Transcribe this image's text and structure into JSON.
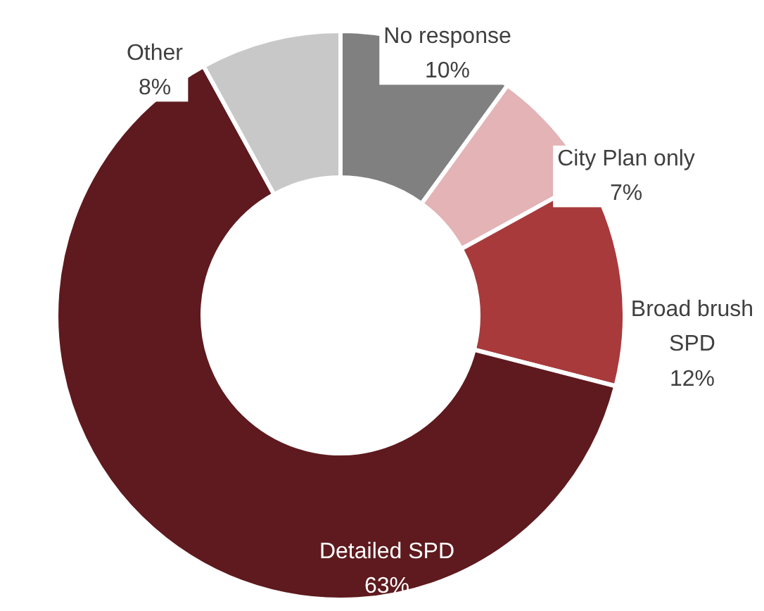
{
  "chart_data": {
    "type": "donut",
    "categories": [
      "No response",
      "City Plan only",
      "Broad brush SPD",
      "Detailed SPD",
      "Other"
    ],
    "values": [
      10,
      7,
      12,
      63,
      8
    ],
    "colors": [
      "#808080",
      "#e3b3b6",
      "#a83a3c",
      "#5e1a1e",
      "#c8c8c8"
    ],
    "value_labels": [
      "10%",
      "7%",
      "12%",
      "63%",
      "8%"
    ]
  }
}
